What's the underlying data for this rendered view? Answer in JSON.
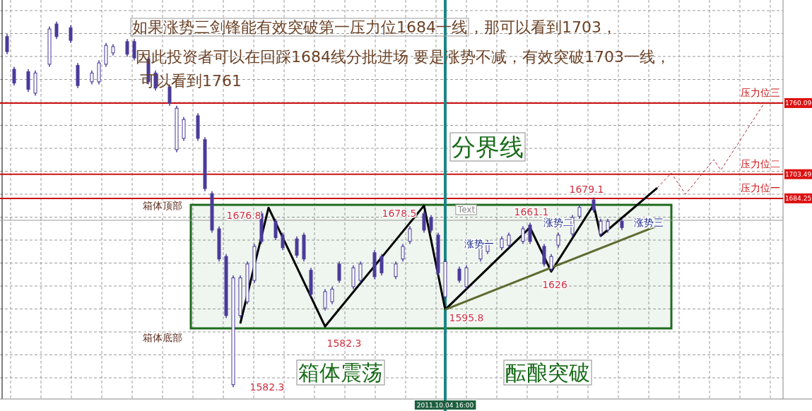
{
  "chart_data": {
    "type": "candlestick",
    "annotations": [
      "如果涨势三剑锋能有效突破第一压力位1684一线",
      "，那可以看到1703，",
      "因此投资者可以在回踩1684线分批进场 要是涨势不减，有效突破1703一线，",
      "可以看到1761",
      "分界线",
      "箱体震荡",
      "酝酿突破",
      "Text",
      "箱体顶部",
      "箱体底部",
      "1676.8",
      "1678.5",
      "1582.3",
      "1582.3",
      "1595.8",
      "1661.1",
      "1626",
      "1679.1",
      "涨势一",
      "涨势二",
      "涨势三"
    ],
    "categories": [
      null,
      null,
      null,
      null,
      null,
      null,
      null,
      null,
      null,
      null,
      null,
      null,
      null,
      null,
      null,
      null,
      null,
      null,
      null,
      null,
      null,
      null,
      null,
      null,
      null,
      null,
      null,
      null,
      null,
      null,
      null,
      null,
      null,
      null,
      null,
      null,
      null,
      null,
      null,
      null,
      null,
      null,
      null,
      null,
      null,
      null,
      null,
      null,
      null,
      null,
      null,
      null,
      null,
      null,
      null,
      null,
      null,
      null,
      null,
      null,
      null,
      null,
      null,
      "2011.10.04 16:00",
      null,
      null,
      null,
      null,
      null,
      null,
      null,
      null,
      null,
      null,
      null,
      null,
      null,
      null,
      null,
      null,
      null,
      null,
      null,
      null,
      null,
      null,
      null,
      null,
      null,
      null,
      null,
      null,
      null,
      null,
      null,
      null,
      null,
      null,
      null,
      null,
      null,
      null,
      null,
      null,
      null,
      null,
      null,
      null,
      null,
      null,
      null
    ],
    "series": [
      {
        "type": "line",
        "color": "#000000",
        "values": [
          null,
          null,
          null,
          null,
          null,
          null,
          null,
          null,
          null,
          null,
          null,
          null,
          null,
          null,
          null,
          null,
          null,
          null,
          null,
          null,
          null,
          null,
          null,
          null,
          null,
          null,
          null,
          null,
          null,
          null,
          null,
          null,
          null,
          null,
          1584.7,
          null,
          null,
          null,
          1676.8,
          null,
          null,
          null,
          null,
          null,
          null,
          null,
          1582.3,
          null,
          null,
          null,
          null,
          null,
          null,
          null,
          null,
          null,
          null,
          null,
          null,
          null,
          1678.5,
          null,
          null,
          1595.8,
          null,
          null,
          null,
          null,
          null,
          null,
          null,
          null,
          null,
          null,
          null,
          null,
          null,
          null,
          null,
          null,
          null,
          null,
          null,
          null,
          null,
          null,
          null,
          null,
          null,
          null,
          null,
          null,
          null,
          null,
          null,
          null,
          null,
          null,
          null,
          null,
          null,
          null,
          null,
          null,
          null,
          null,
          null,
          null,
          null,
          null,
          null
        ]
      },
      {
        "type": "line",
        "color": "#000000",
        "values": [
          null,
          null,
          null,
          null,
          null,
          null,
          null,
          null,
          null,
          null,
          null,
          null,
          null,
          null,
          null,
          null,
          null,
          null,
          null,
          null,
          null,
          null,
          null,
          null,
          null,
          null,
          null,
          null,
          null,
          null,
          null,
          null,
          null,
          null,
          null,
          null,
          null,
          null,
          null,
          null,
          null,
          null,
          null,
          null,
          null,
          null,
          null,
          null,
          null,
          null,
          null,
          null,
          null,
          null,
          null,
          null,
          null,
          null,
          null,
          null,
          null,
          null,
          null,
          1595.8,
          null,
          null,
          null,
          null,
          null,
          null,
          null,
          null,
          null,
          null,
          null,
          1661.1,
          null,
          null,
          1626,
          null,
          null,
          null,
          null,
          null,
          1679.1,
          1654.4,
          null,
          null,
          null,
          null,
          null,
          null,
          null,
          1692.6,
          null,
          null,
          null,
          null,
          null,
          null,
          null,
          null,
          null,
          null,
          null,
          null,
          null,
          null,
          null,
          null,
          null
        ]
      },
      {
        "type": "line",
        "color": "#5e6b2e",
        "values": [
          null,
          null,
          null,
          null,
          null,
          null,
          null,
          null,
          null,
          null,
          null,
          null,
          null,
          null,
          null,
          null,
          null,
          null,
          null,
          null,
          null,
          null,
          null,
          null,
          null,
          null,
          null,
          null,
          null,
          null,
          null,
          null,
          null,
          null,
          null,
          null,
          null,
          null,
          null,
          null,
          null,
          null,
          null,
          null,
          null,
          null,
          null,
          null,
          null,
          null,
          null,
          null,
          null,
          null,
          null,
          null,
          null,
          null,
          null,
          null,
          null,
          null,
          null,
          1595.8,
          null,
          null,
          null,
          null,
          null,
          null,
          null,
          null,
          null,
          null,
          null,
          null,
          null,
          null,
          null,
          null,
          null,
          null,
          null,
          null,
          null,
          null,
          null,
          null,
          null,
          null,
          null,
          null,
          null,
          1662.3,
          null,
          null,
          null,
          null,
          null,
          null,
          null,
          null,
          null,
          null,
          null,
          null,
          null,
          null,
          null,
          null,
          null
        ]
      },
      {
        "type": "line",
        "color": "#b03040",
        "line_style": "dashed",
        "values": [
          null,
          null,
          null,
          null,
          null,
          null,
          null,
          null,
          null,
          null,
          null,
          null,
          null,
          null,
          null,
          null,
          null,
          null,
          null,
          null,
          null,
          null,
          null,
          null,
          null,
          null,
          null,
          null,
          null,
          null,
          null,
          null,
          null,
          null,
          null,
          null,
          null,
          null,
          null,
          null,
          null,
          null,
          null,
          null,
          null,
          null,
          null,
          null,
          null,
          null,
          null,
          null,
          null,
          null,
          null,
          null,
          null,
          null,
          null,
          null,
          null,
          null,
          null,
          null,
          null,
          null,
          null,
          null,
          null,
          null,
          null,
          null,
          null,
          null,
          null,
          null,
          null,
          null,
          null,
          null,
          null,
          null,
          null,
          null,
          null,
          null,
          null,
          null,
          null,
          null,
          null,
          null,
          null,
          1692.6,
          null,
          1704.4,
          null,
          1687.6,
          null,
          null,
          null,
          1715.1,
          1706.7,
          null,
          null,
          null,
          null,
          null,
          1758.9,
          null,
          null
        ]
      },
      {
        "color": "#4b3a9a",
        "ohlc": [
          null,
          [
            1813,
            1815,
            1799,
            1801
          ],
          [
            1787,
            1789,
            1774,
            1776
          ],
          null,
          [
            1785,
            1787,
            1769,
            1771
          ],
          [
            1768,
            1786,
            1766,
            1784
          ],
          null,
          [
            1791,
            1821,
            1789,
            1819
          ],
          [
            1823,
            1825,
            1811,
            1813
          ],
          null,
          [
            1820,
            1822,
            1808,
            1810
          ],
          [
            1790,
            1792,
            1772,
            1774
          ],
          null,
          [
            1777,
            1786,
            1775,
            1784
          ],
          [
            1777,
            1794,
            1775,
            1792
          ],
          [
            1791,
            1808,
            1789,
            1806
          ],
          [
            1800,
            1807,
            1798,
            1805
          ],
          null,
          [
            1809,
            1811,
            1797,
            1799
          ],
          [
            1809,
            1811,
            1794,
            1796
          ],
          null,
          [
            1795,
            1797,
            1775,
            1777
          ],
          [
            1784,
            1786,
            1770,
            1772
          ],
          null,
          [
            1773,
            1775,
            1758,
            1760
          ],
          [
            1723,
            1758,
            1721,
            1756
          ],
          [
            1732,
            1749,
            1730,
            1747
          ],
          null,
          [
            1750,
            1752,
            1730,
            1732
          ],
          [
            1731,
            1733,
            1690,
            1692
          ],
          [
            1688,
            1690,
            1657,
            1659
          ],
          [
            1660,
            1662,
            1634,
            1636
          ],
          [
            1638,
            1640,
            1589,
            1591
          ],
          [
            1536,
            1623,
            1534,
            1621
          ],
          [
            1591,
            1623,
            1589,
            1621
          ],
          [
            1602,
            1634,
            1600,
            1632
          ],
          [
            1619,
            1648,
            1617,
            1646
          ],
          [
            1672,
            1674,
            1648,
            1650
          ],
          null,
          [
            1666,
            1668,
            1651,
            1653
          ],
          [
            1655,
            1657,
            1643,
            1645
          ],
          null,
          [
            1652,
            1654,
            1637,
            1639
          ],
          [
            1655,
            1657,
            1634,
            1636
          ],
          [
            1627,
            1629,
            1606,
            1608
          ],
          null,
          [
            1597,
            1612,
            1595,
            1610
          ],
          [
            1602,
            1614,
            1600,
            1612
          ],
          [
            1632,
            1634,
            1617,
            1619
          ],
          null,
          [
            1614,
            1631,
            1612,
            1629
          ],
          [
            1619,
            1634,
            1617,
            1632
          ],
          null,
          [
            1641,
            1643,
            1620,
            1622
          ],
          [
            1638,
            1640,
            1623,
            1625
          ],
          null,
          [
            1622,
            1634,
            1620,
            1632
          ],
          [
            1636,
            1648,
            1634,
            1646
          ],
          [
            1650,
            1662,
            1648,
            1660
          ],
          null,
          [
            1672,
            1674,
            1657,
            1659
          ],
          [
            1669,
            1671,
            1657,
            1659
          ],
          [
            1655,
            1657,
            1623,
            1625
          ],
          [
            1606,
            1636,
            1604,
            1634
          ],
          null,
          [
            1628,
            1630,
            1617,
            1619
          ],
          [
            1614,
            1631,
            1612,
            1629
          ],
          null,
          [
            1636,
            1651,
            1634,
            1649
          ],
          [
            1642,
            1651,
            1640,
            1649
          ],
          null,
          [
            1645,
            1654,
            1643,
            1652
          ],
          [
            1647,
            1657,
            1645,
            1655
          ],
          null,
          [
            1650,
            1662,
            1648,
            1660
          ],
          [
            1663,
            1665,
            1648,
            1650
          ],
          null,
          [
            1646,
            1648,
            1630,
            1632
          ],
          [
            1628,
            1640,
            1626,
            1638
          ],
          [
            1647,
            1657,
            1645,
            1655
          ],
          null,
          [
            1656,
            1671,
            1654,
            1669
          ],
          [
            1670,
            1679,
            1668,
            1677
          ],
          null,
          [
            1683,
            1685,
            1673,
            1675
          ],
          [
            1656,
            1668,
            1654,
            1666
          ],
          [
            1659,
            1668,
            1657,
            1666
          ],
          null,
          [
            1666,
            1668,
            1659,
            1661
          ],
          null,
          null,
          null,
          null,
          null,
          null,
          null,
          null,
          null,
          null,
          null,
          null,
          null,
          null,
          null,
          null,
          null,
          null,
          null,
          null,
          null,
          null
        ]
      }
    ],
    "ylim": [
      1524.6,
      1842.1
    ],
    "yticks": [
      1684.25,
      1703.49,
      1760.09
    ],
    "grid": true,
    "bands": [
      {
        "axis": "y",
        "from": 1580.8,
        "to": 1679.1,
        "color": "#1f6b1f"
      }
    ],
    "ref_lines": [
      {
        "axis": "y",
        "value": 1760.09,
        "label": "压力位三",
        "color": "#cc1111"
      },
      {
        "axis": "y",
        "value": 1703.49,
        "label": "压力位二",
        "color": "#cc1111"
      },
      {
        "axis": "y",
        "value": 1684.25,
        "label": "压力位一",
        "color": "#cc1111"
      },
      {
        "axis": "y",
        "value": 1666.8,
        "color": "#999999"
      },
      {
        "axis": "x",
        "value": "2011.10.04 16:00",
        "color": "#1a8585"
      }
    ]
  }
}
